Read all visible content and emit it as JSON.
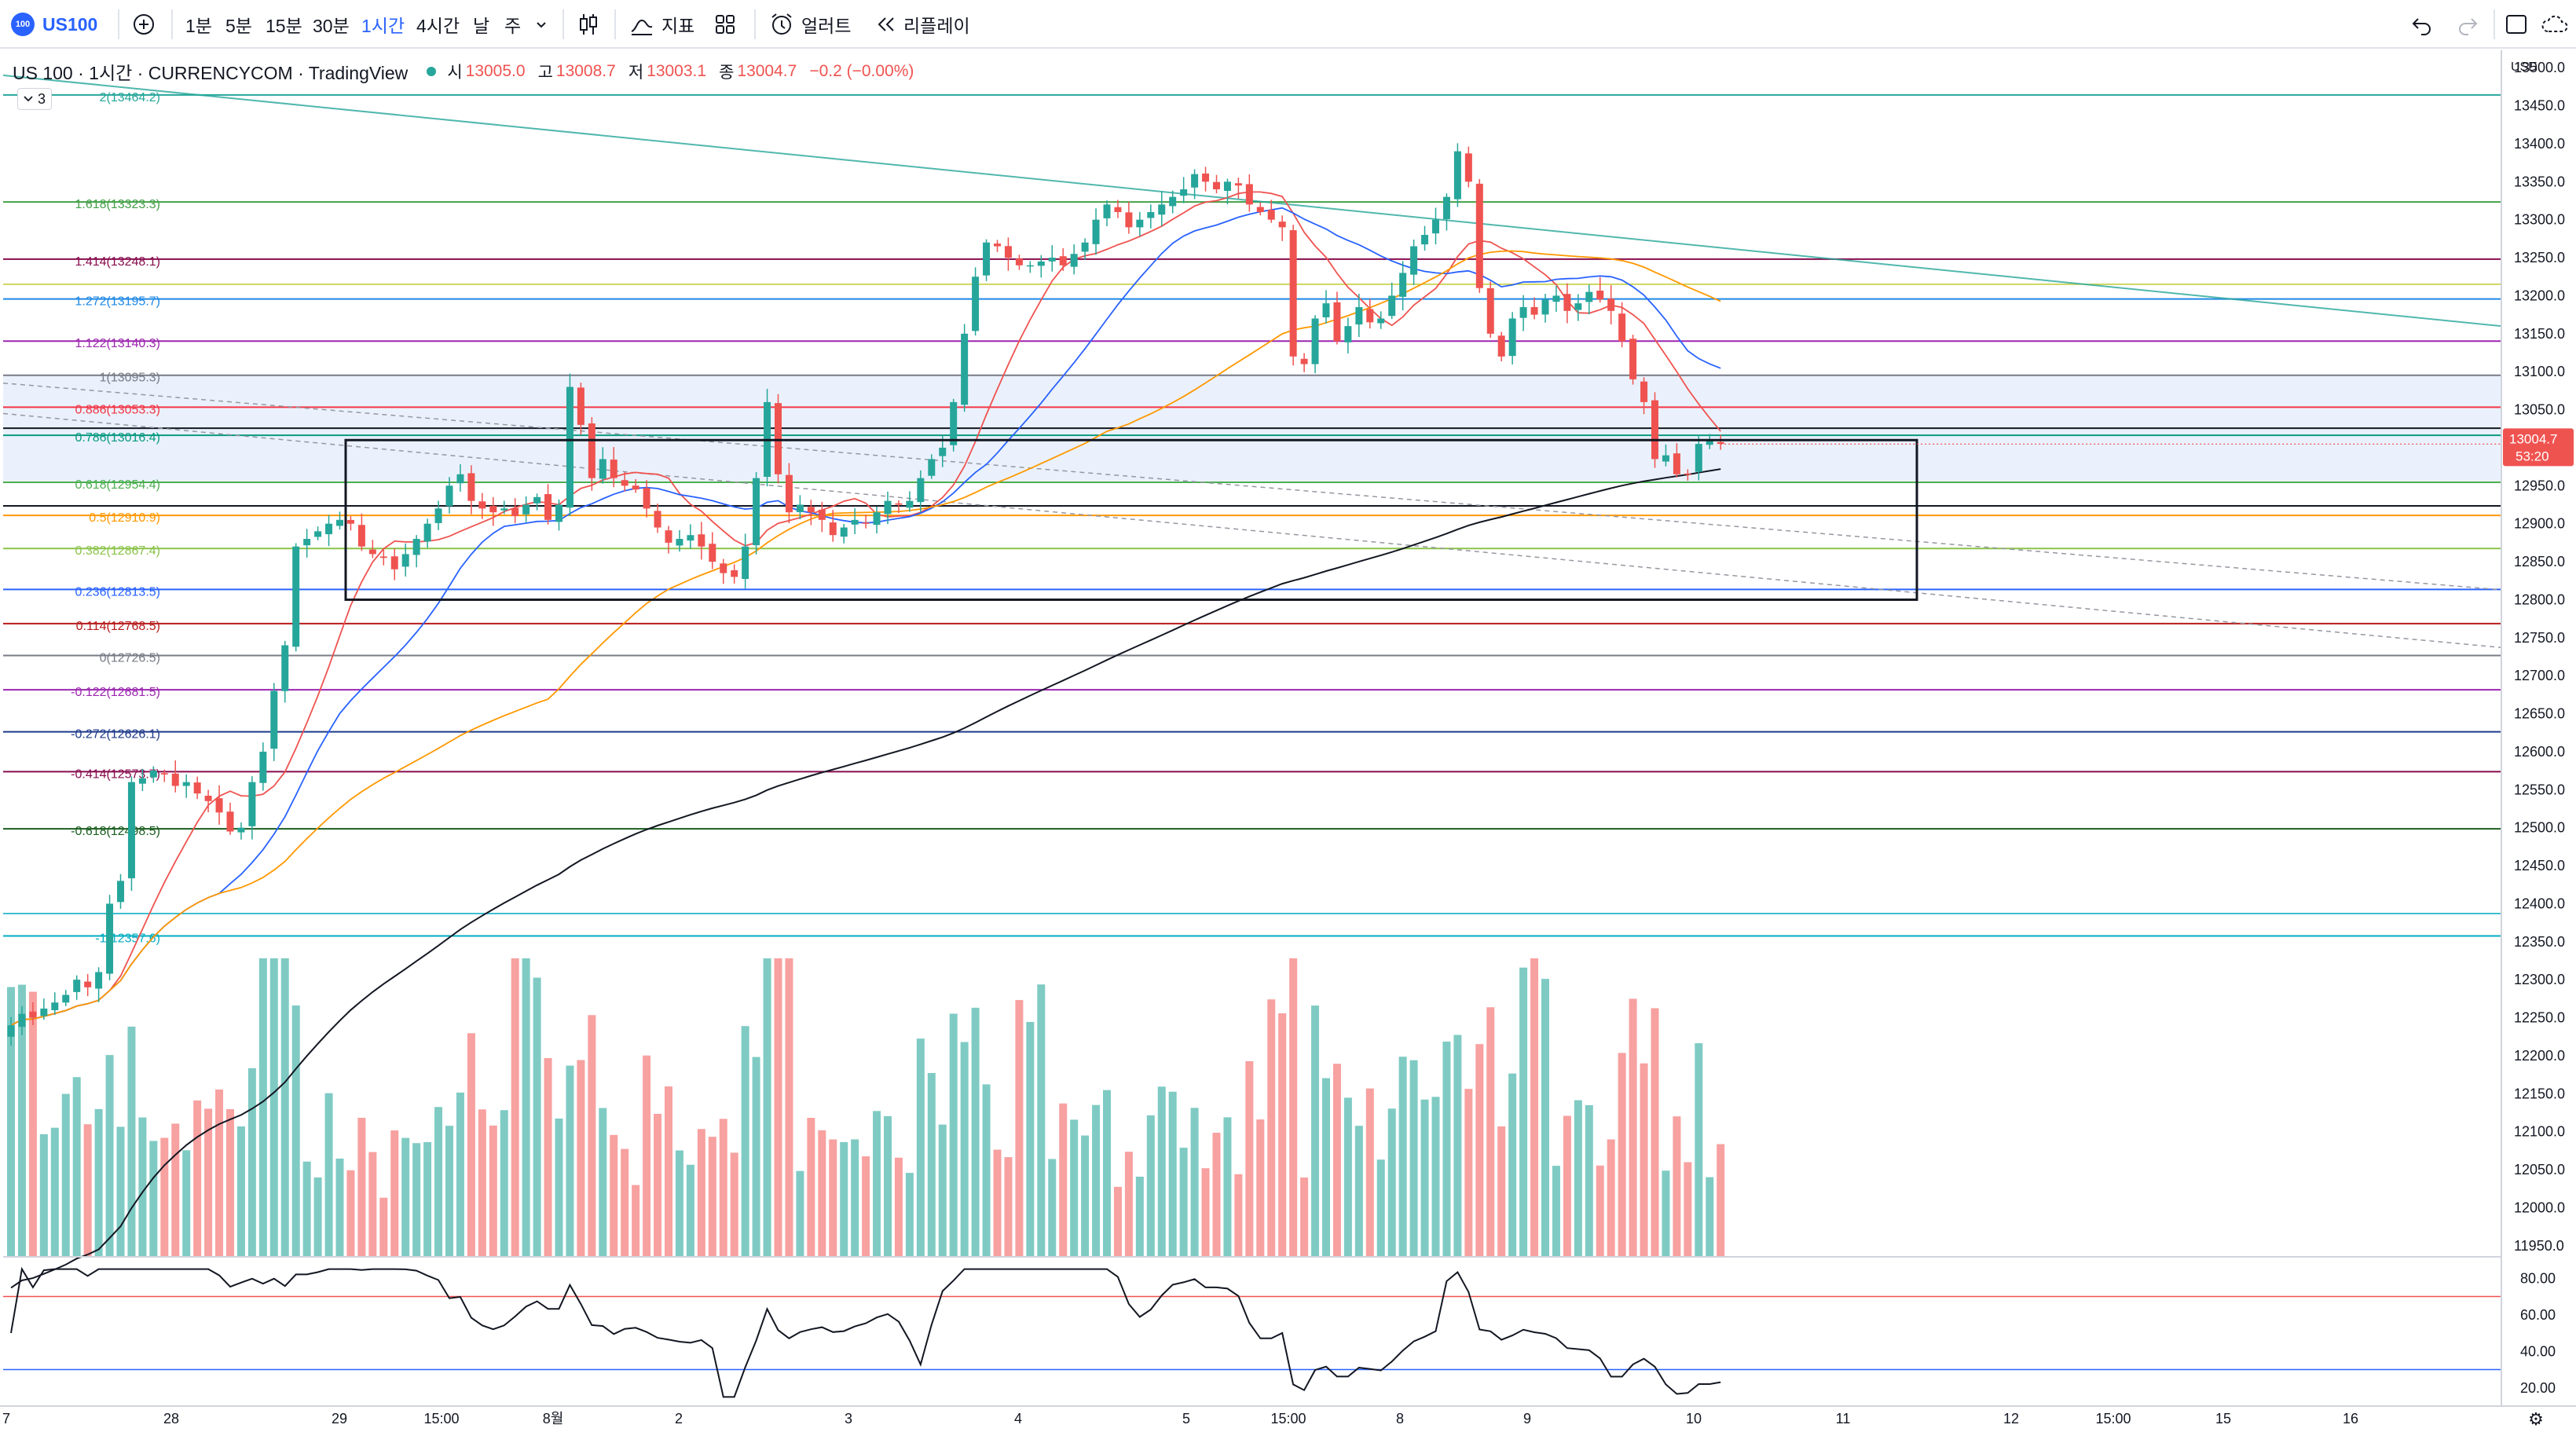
{
  "toolbar": {
    "symbol_badge": "100",
    "symbol": "US100",
    "add_icon": "plus-circle-icon",
    "intervals": [
      "1분",
      "5분",
      "15분",
      "30분",
      "1시간",
      "4시간",
      "날",
      "주"
    ],
    "active_interval": "1시간",
    "interval_menu_icon": "chevron-down-icon",
    "chart_type_icon": "candles-icon",
    "indicators_label": "지표",
    "templates_icon": "grid-icon",
    "alert_label": "얼러트",
    "replay_label": "리플레이",
    "undo_icon": "undo-icon",
    "redo_icon": "redo-icon",
    "fullscreen_icon": "square-icon",
    "snapshot_icon": "cloud-icon"
  },
  "legend": {
    "title": "US 100 · 1시간 · CURRENCYCOM · TradingView",
    "open_label": "시",
    "open": "13005.0",
    "high_label": "고",
    "high": "13008.7",
    "low_label": "저",
    "low": "13003.1",
    "close_label": "종",
    "close": "13004.7",
    "change": "−0.2 (−0.00%)",
    "indicators_count": "3"
  },
  "price_axis": {
    "currency": "USD",
    "ticks": [
      "13500.0",
      "13450.0",
      "13400.0",
      "13350.0",
      "13300.0",
      "13250.0",
      "13200.0",
      "13150.0",
      "13100.0",
      "13050.0",
      "13000.0",
      "12950.0",
      "12900.0",
      "12850.0",
      "12800.0",
      "12750.0",
      "12700.0",
      "12650.0",
      "12600.0",
      "12550.0",
      "12500.0",
      "12450.0",
      "12400.0",
      "12350.0",
      "12300.0",
      "12250.0",
      "12200.0",
      "12150.0",
      "12100.0",
      "12050.0",
      "12000.0",
      "11950.0"
    ],
    "last_price": "13004.7",
    "countdown": "53:20"
  },
  "rsi_axis": {
    "ticks": [
      "80.00",
      "60.00",
      "40.00",
      "20.00"
    ]
  },
  "time_axis": {
    "labels": [
      "7",
      "28",
      "29",
      "15:00",
      "8월",
      "2",
      "3",
      "4",
      "5",
      "15:00",
      "8",
      "9",
      "10",
      "11",
      "12",
      "15:00",
      "15",
      "16"
    ]
  },
  "fib_levels": [
    {
      "label": "2(13464.2)",
      "price": 13464.2,
      "color": "#26a69a"
    },
    {
      "label": "1.618(13323.3)",
      "price": 13323.3,
      "color": "#43a047"
    },
    {
      "label": "1.414(13248.1)",
      "price": 13248.1,
      "color": "#880e4f"
    },
    {
      "label": "1.272(13195.7)",
      "price": 13195.7,
      "color": "#1e88e5"
    },
    {
      "label": "1.122(13140.3)",
      "price": 13140.3,
      "color": "#9c27b0"
    },
    {
      "label": "1(13095.3)",
      "price": 13095.3,
      "color": "#787b86"
    },
    {
      "label": "0.886(13053.3)",
      "price": 13053.3,
      "color": "#f23645"
    },
    {
      "label": "0.786(13016.4)",
      "price": 13016.4,
      "color": "#089981"
    },
    {
      "label": "0.618(12954.4)",
      "price": 12954.4,
      "color": "#4caf50"
    },
    {
      "label": "0.5(12910.9)",
      "price": 12910.9,
      "color": "#ff9800"
    },
    {
      "label": "0.382(12867.4)",
      "price": 12867.4,
      "color": "#8bc34a"
    },
    {
      "label": "0.236(12813.5)",
      "price": 12813.5,
      "color": "#2962ff"
    },
    {
      "label": "0.114(12768.5)",
      "price": 12768.5,
      "color": "#b71c1c"
    },
    {
      "label": "0(12726.5)",
      "price": 12726.5,
      "color": "#787b86"
    },
    {
      "label": "-0.122(12681.5)",
      "price": 12681.5,
      "color": "#9c27b0"
    },
    {
      "label": "-0.272(12626.1)",
      "price": 12626.1,
      "color": "#1e3a8a"
    },
    {
      "label": "-0.414(12573.7)",
      "price": 12573.7,
      "color": "#880e4f"
    },
    {
      "label": "-0.618(12498.5)",
      "price": 12498.5,
      "color": "#1b5e20"
    },
    {
      "label": "-1(12357.6)",
      "price": 12357.6,
      "color": "#00acc1"
    }
  ],
  "colors": {
    "up": "#26a69a",
    "down": "#ef5350",
    "vol_up": "#7fcbc4",
    "vol_down": "#f7a1a0",
    "ma_fast": "#ef5350",
    "ma_mid": "#2962ff",
    "ma_slow": "#ff9800",
    "ma_200": "#131722",
    "rsi": "#131722"
  },
  "chart_data": {
    "type": "candlestick",
    "symbol": "US 100",
    "interval": "1시간",
    "ylim": [
      11925,
      13525
    ],
    "rsi_ylim": [
      10,
      90
    ],
    "closes": [
      12240,
      12255,
      12250,
      12262,
      12270,
      12280,
      12300,
      12290,
      12310,
      12400,
      12430,
      12560,
      12565,
      12575,
      12570,
      12555,
      12560,
      12545,
      12535,
      12520,
      12495,
      12500,
      12560,
      12600,
      12680,
      12740,
      12870,
      12880,
      12890,
      12900,
      12905,
      12900,
      12870,
      12860,
      12855,
      12840,
      12860,
      12880,
      12900,
      12920,
      12950,
      12965,
      12930,
      12920,
      12915,
      12920,
      12910,
      12925,
      12935,
      12905,
      12925,
      13080,
      13030,
      12960,
      12985,
      12960,
      12950,
      12945,
      12920,
      12895,
      12875,
      12880,
      12885,
      12870,
      12850,
      12835,
      12830,
      12870,
      12960,
      13060,
      12965,
      12915,
      12925,
      12915,
      12905,
      12885,
      12895,
      12905,
      12900,
      12915,
      12930,
      12925,
      12930,
      12960,
      12985,
      13000,
      13060,
      13150,
      13225,
      13270,
      13265,
      13250,
      13240,
      13240,
      13245,
      13250,
      13240,
      13255,
      13270,
      13300,
      13320,
      13310,
      13290,
      13300,
      13310,
      13320,
      13330,
      13340,
      13360,
      13350,
      13340,
      13350,
      13345,
      13320,
      13310,
      13300,
      13290,
      13120,
      13110,
      13170,
      13190,
      13140,
      13160,
      13185,
      13165,
      13170,
      13200,
      13230,
      13265,
      13280,
      13300,
      13330,
      13390,
      13350,
      13210,
      13150,
      13120,
      13170,
      13185,
      13175,
      13195,
      13200,
      13180,
      13190,
      13205,
      13195,
      13180,
      13140,
      13090,
      13060,
      12985,
      12990,
      12965,
      12965,
      13005,
      13010,
      13005
    ]
  }
}
